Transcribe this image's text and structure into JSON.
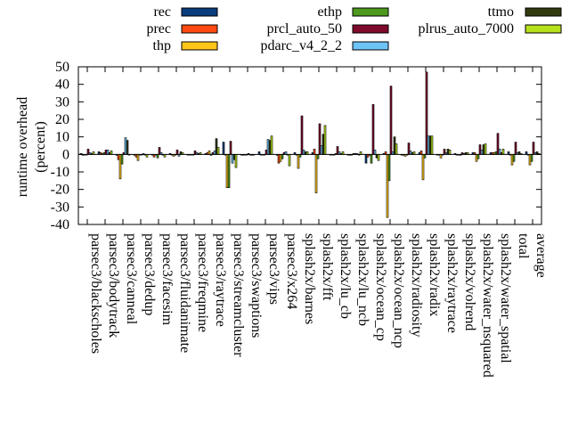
{
  "chart_data": {
    "type": "bar",
    "title": "",
    "xlabel": "",
    "ylabel": "runtime overhead",
    "ylabel_unit": "(percent)",
    "ylim": [
      -40,
      50
    ],
    "yticks": [
      -40,
      -30,
      -20,
      -10,
      0,
      10,
      20,
      30,
      40,
      50
    ],
    "grid": false,
    "legend_position": "top",
    "categories": [
      "parsec3/blackscholes",
      "parsec3/bodytrack",
      "parsec3/canneal",
      "parsec3/dedup",
      "parsec3/facesim",
      "parsec3/fluidanimate",
      "parsec3/freqmine",
      "parsec3/raytrace",
      "parsec3/streamcluster",
      "parsec3/swaptions",
      "parsec3/vips",
      "parsec3/x264",
      "splash2x/barnes",
      "splash2x/fft",
      "splash2x/lu_cb",
      "splash2x/lu_ncb",
      "splash2x/ocean_cp",
      "splash2x/ocean_ncp",
      "splash2x/radiosity",
      "splash2x/radix",
      "splash2x/raytrace",
      "splash2x/volrend",
      "splash2x/water_nsquared",
      "splash2x/water_spatial",
      "total",
      "average"
    ],
    "series": [
      {
        "name": "rec",
        "color": "#0b3d7e",
        "values": [
          0.5,
          1.5,
          -0.5,
          -0.5,
          0,
          0.5,
          -0.3,
          0.5,
          7,
          0,
          1.5,
          -0.5,
          1,
          1,
          0,
          0,
          -5,
          0.5,
          0,
          1,
          0,
          0.5,
          1,
          1,
          1.5,
          1.5
        ]
      },
      {
        "name": "prec",
        "color": "#ff4a12",
        "values": [
          -0.5,
          1,
          -3,
          -1.5,
          -1.5,
          0,
          0,
          1,
          0,
          -0.5,
          0,
          -5,
          0,
          3,
          0,
          -0.5,
          -1.5,
          1.5,
          -0.5,
          2,
          0,
          0,
          1,
          1,
          0,
          0
        ]
      },
      {
        "name": "thp",
        "color": "#ffc61a",
        "values": [
          0,
          0.5,
          -14,
          -3.5,
          0,
          -1,
          0,
          2,
          -19,
          0,
          0,
          -4,
          -8,
          -22,
          0,
          0,
          -0.5,
          -36,
          -1,
          -14.5,
          -2,
          0,
          -4,
          1,
          -6,
          -6
        ]
      },
      {
        "name": "ethp",
        "color": "#4e9a1e",
        "values": [
          0,
          1,
          -5.5,
          0,
          -2,
          0,
          0,
          -0.5,
          -19,
          0,
          0,
          -2.5,
          -1.5,
          -2.5,
          0.5,
          0.5,
          -5,
          -15,
          0,
          -2,
          0,
          -0.5,
          -2.5,
          1.5,
          -4,
          -4
        ]
      },
      {
        "name": "prcl_auto_50",
        "color": "#7e0a2c",
        "values": [
          3,
          2.5,
          1,
          0,
          4,
          2.5,
          2,
          1,
          7.5,
          0.5,
          2.5,
          1,
          22,
          17.5,
          4.5,
          0.5,
          28.5,
          39,
          6.5,
          47,
          3,
          1,
          5.5,
          12,
          7,
          7
        ]
      },
      {
        "name": "pdarc_v4_2_2",
        "color": "#6ec3f7",
        "values": [
          1,
          2.5,
          9.5,
          0.5,
          1,
          -1,
          1,
          2,
          -5,
          0,
          8.5,
          1.5,
          2.5,
          5,
          1.5,
          0.5,
          2.5,
          1.5,
          2,
          10.5,
          1,
          0.5,
          2.5,
          3,
          1,
          1
        ]
      },
      {
        "name": "ttmo",
        "color": "#323a10",
        "values": [
          0.5,
          1,
          8,
          0,
          0,
          1.5,
          0.5,
          9,
          -3,
          -0.5,
          8,
          0,
          1.5,
          11.5,
          0.5,
          0,
          -2,
          10,
          1,
          10.5,
          3,
          1,
          5.5,
          1,
          1.5,
          1.5
        ]
      },
      {
        "name": "plrus_auto_7000",
        "color": "#b5e11b",
        "values": [
          1.5,
          2,
          0,
          -1.5,
          -1.5,
          1,
          1,
          4,
          -7.5,
          0,
          10.5,
          -6.5,
          1.5,
          16.5,
          1.5,
          1.5,
          -3.5,
          6,
          1.5,
          10.5,
          2.5,
          1,
          6,
          3,
          0.5,
          0.5
        ]
      }
    ]
  }
}
